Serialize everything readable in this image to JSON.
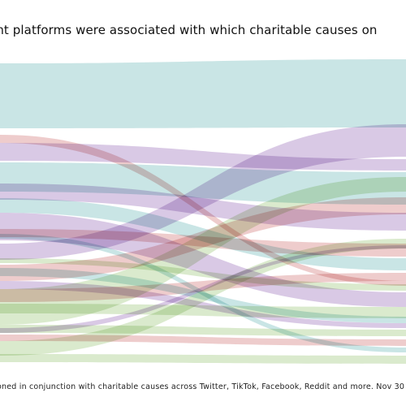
{
  "title": "ent platforms were associated with which charitable causes on",
  "footnote": "oned in conjunction with charitable causes across Twitter, TikTok, Facebook, Reddit and more. Nov 30 –",
  "colors": {
    "teal": "#bfe1e0",
    "purple": "#d2bfe0",
    "pink": "#ebc3c3",
    "green": "#d3e6c4"
  }
}
